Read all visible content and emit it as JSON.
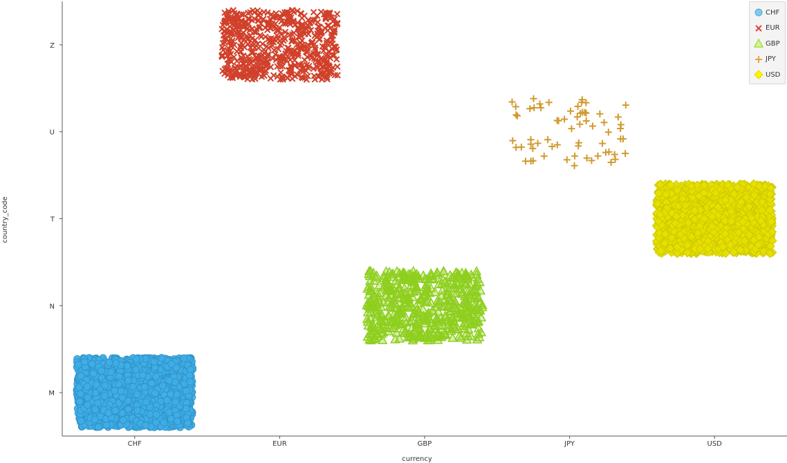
{
  "chart_data": {
    "type": "scatter",
    "title": "",
    "xlabel": "currency",
    "ylabel": "country_code",
    "x_categories": [
      "CHF",
      "EUR",
      "GBP",
      "JPY",
      "USD"
    ],
    "y_categories": [
      "M",
      "N",
      "T",
      "U",
      "Z"
    ],
    "jitter": 0.4,
    "grid": false,
    "legend": "top-right",
    "series": [
      {
        "name": "CHF",
        "x": "CHF",
        "y": "M",
        "count": 1500,
        "marker": "circle",
        "color": "#3daee9"
      },
      {
        "name": "EUR",
        "x": "EUR",
        "y": "Z",
        "count": 600,
        "marker": "x",
        "color": "#d0402a"
      },
      {
        "name": "GBP",
        "x": "GBP",
        "y": "N",
        "count": 500,
        "marker": "triangle",
        "color": "#8ecf1f"
      },
      {
        "name": "JPY",
        "x": "JPY",
        "y": "U",
        "count": 65,
        "marker": "plus",
        "color": "#d19a2e"
      },
      {
        "name": "USD",
        "x": "USD",
        "y": "T",
        "count": 1500,
        "marker": "diamond",
        "color": "#e6e000"
      }
    ]
  },
  "legend_colors": {
    "CHF": "#6ec6f0",
    "EUR": "#e0463a",
    "GBP": "#a6e22e",
    "JPY": "#e8a33a",
    "USD": "#fff300"
  }
}
